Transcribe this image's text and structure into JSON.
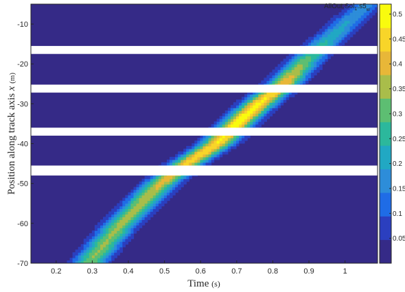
{
  "chart_data": {
    "type": "heatmap",
    "xlabel": "Time",
    "xlabel_unit": "(s)",
    "ylabel": "Position along track axis",
    "ylabel_var": "x",
    "ylabel_unit": "(m)",
    "corner_label": {
      "main": "AllOut.Sol",
      "sub1": "1",
      "mid": ".s5",
      "sub2": "w"
    },
    "xlim": [
      0.13,
      1.09
    ],
    "ylim": [
      -70,
      -5
    ],
    "x_ticks": [
      0.2,
      0.3,
      0.4,
      0.5,
      0.6,
      0.7,
      0.8,
      0.9,
      1
    ],
    "x_tick_labels": [
      "0.2",
      "0.3",
      "0.4",
      "0.5",
      "0.6",
      "0.7",
      "0.8",
      "0.9",
      "1"
    ],
    "y_ticks": [
      -10,
      -20,
      -30,
      -40,
      -50,
      -60,
      -70
    ],
    "y_tick_labels": [
      "-10",
      "-20",
      "-30",
      "-40",
      "-50",
      "-60",
      "-70"
    ],
    "colorbar": {
      "range": [
        0,
        0.52
      ],
      "ticks": [
        0.05,
        0.1,
        0.15,
        0.2,
        0.25,
        0.3,
        0.35,
        0.4,
        0.45,
        0.5
      ],
      "tick_labels": [
        "0.05",
        "0.1",
        "0.15",
        "0.2",
        "0.25",
        "0.3",
        "0.35",
        "0.4",
        "0.45",
        "0.5"
      ],
      "colors": [
        "#352a87",
        "#2b3fbf",
        "#1f6ce6",
        "#2d8dd9",
        "#21a8c3",
        "#2cb89c",
        "#5dbe72",
        "#a9bd4a",
        "#e8b738",
        "#f8d529",
        "#f9fb0e"
      ]
    },
    "gaps": [
      {
        "y_top": -15.5,
        "y_bottom": -17.5
      },
      {
        "y_top": -25.2,
        "y_bottom": -27.2
      },
      {
        "y_top": -36.0,
        "y_bottom": -38.0
      },
      {
        "y_top": -45.5,
        "y_bottom": -48.0
      }
    ],
    "band": {
      "center_line": [
        {
          "y": -70,
          "t": 0.29
        },
        {
          "y": -60,
          "t": 0.38
        },
        {
          "y": -50,
          "t": 0.49
        },
        {
          "y": -45,
          "t": 0.56
        },
        {
          "y": -40,
          "t": 0.645
        },
        {
          "y": -35,
          "t": 0.7
        },
        {
          "y": -30,
          "t": 0.76
        },
        {
          "y": -25,
          "t": 0.83
        },
        {
          "y": -20,
          "t": 0.88
        },
        {
          "y": -15,
          "t": 0.94
        },
        {
          "y": -10,
          "t": 1.0
        },
        {
          "y": -5,
          "t": 1.06
        }
      ],
      "peak_profile": [
        {
          "y": -70,
          "value": 0.33
        },
        {
          "y": -62,
          "value": 0.34
        },
        {
          "y": -55,
          "value": 0.36
        },
        {
          "y": -48,
          "value": 0.4
        },
        {
          "y": -43,
          "value": 0.46
        },
        {
          "y": -38,
          "value": 0.48
        },
        {
          "y": -33,
          "value": 0.5
        },
        {
          "y": -28,
          "value": 0.47
        },
        {
          "y": -22,
          "value": 0.37
        },
        {
          "y": -17,
          "value": 0.27
        },
        {
          "y": -12,
          "value": 0.21
        },
        {
          "y": -5,
          "value": 0.16
        }
      ],
      "half_width_s": 0.045
    }
  }
}
